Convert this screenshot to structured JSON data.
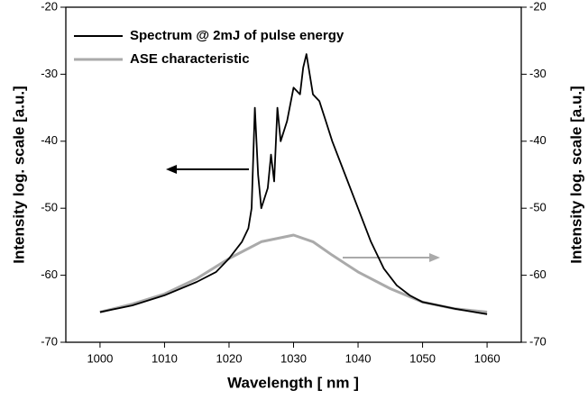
{
  "chart_data": {
    "type": "line",
    "xlabel": "Wavelength [ nm ]",
    "ylabel": "Intensity log. scale [a.u.]",
    "y2label": "Intensity log. scale [a.u.]",
    "xlim": [
      994.7,
      1065.3
    ],
    "xticks": [
      1000,
      1010,
      1020,
      1030,
      1040,
      1050,
      1060
    ],
    "ylim": [
      -70,
      -20
    ],
    "yticks": [
      -70,
      -60,
      -50,
      -40,
      -30,
      -20
    ],
    "y2lim": [
      -70,
      -20
    ],
    "y2ticks": [
      -70,
      -60,
      -50,
      -40,
      -30,
      -20
    ],
    "legend": "upper left",
    "series": [
      {
        "name": "Spectrum @ 2mJ of pulse energy",
        "color": "#000000",
        "axis": "y",
        "x": [
          1000,
          1005,
          1010,
          1015,
          1018,
          1020,
          1022,
          1023,
          1023.5,
          1024,
          1024.5,
          1025,
          1026,
          1026.5,
          1027,
          1027.5,
          1028,
          1029,
          1030,
          1031,
          1031.5,
          1032,
          1032.5,
          1033,
          1034,
          1035,
          1036,
          1038,
          1040,
          1042,
          1044,
          1046,
          1048,
          1050,
          1055,
          1060
        ],
        "values": [
          -65.5,
          -64.5,
          -63,
          -61,
          -59.5,
          -57.5,
          -55,
          -53,
          -50,
          -35,
          -45,
          -50,
          -47,
          -42,
          -46,
          -35,
          -40,
          -37,
          -32,
          -33,
          -29,
          -27,
          -30,
          -33,
          -34,
          -37,
          -40,
          -45,
          -50,
          -55,
          -59,
          -61.5,
          -63,
          -64,
          -65,
          -65.8
        ]
      },
      {
        "name": "ASE characteristic",
        "color": "#aaaaaa",
        "axis": "y2",
        "x": [
          1000,
          1005,
          1010,
          1015,
          1020,
          1025,
          1030,
          1033,
          1036,
          1040,
          1045,
          1050,
          1055,
          1060
        ],
        "values": [
          -65.5,
          -64.3,
          -62.8,
          -60.5,
          -57.5,
          -55,
          -54,
          -55,
          -57,
          -59.5,
          -62,
          -64,
          -65,
          -65.5
        ]
      }
    ]
  }
}
